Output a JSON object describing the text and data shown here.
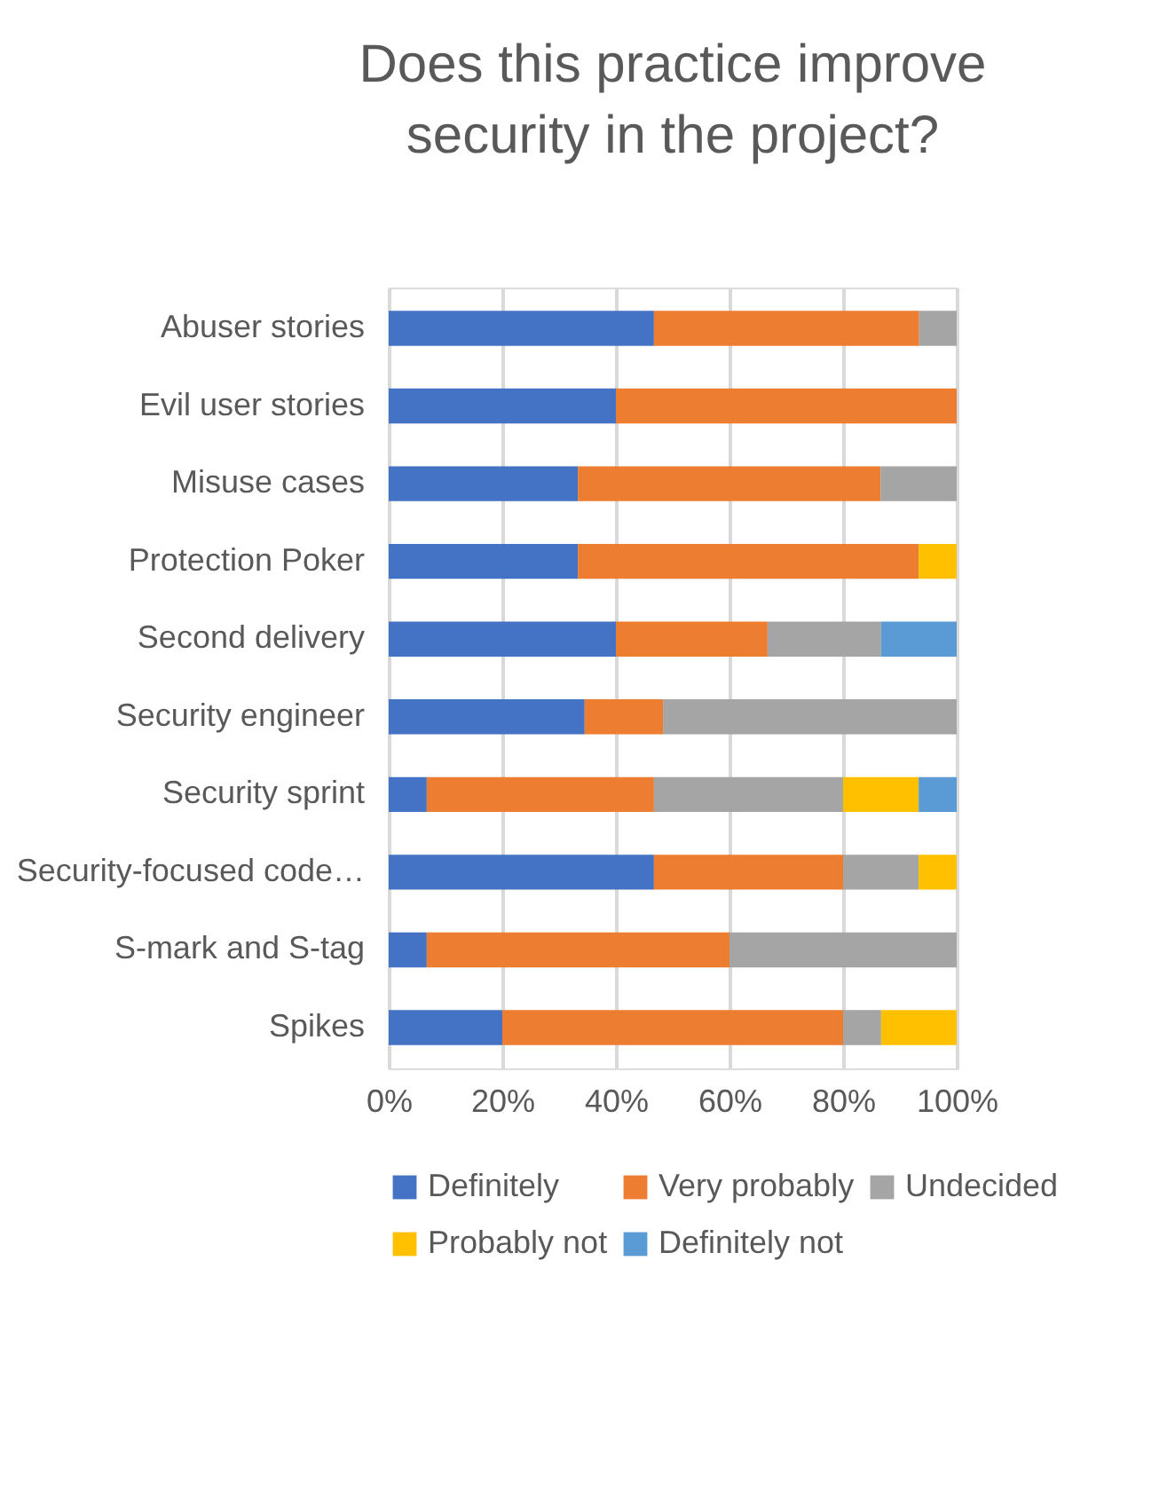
{
  "chart_data": {
    "type": "bar",
    "orientation": "horizontal",
    "stacked": true,
    "title": "Does this practice improve security in the project?",
    "categories": [
      "Abuser stories",
      "Evil user stories",
      "Misuse cases",
      "Protection Poker",
      "Second delivery",
      "Security engineer",
      "Security sprint",
      "Security-focused code…",
      "S-mark and S-tag",
      "Spikes"
    ],
    "series": [
      {
        "name": "Definitely",
        "color": "#4472c4",
        "values": [
          46.7,
          40,
          33.3,
          33.3,
          40,
          34.5,
          6.7,
          46.7,
          6.7,
          20
        ]
      },
      {
        "name": "Very probably",
        "color": "#ed7d31",
        "values": [
          46.7,
          60,
          53.3,
          60,
          26.7,
          13.8,
          40,
          33.3,
          53.3,
          60
        ]
      },
      {
        "name": "Undecided",
        "color": "#a5a5a5",
        "values": [
          6.6,
          0,
          13.4,
          0,
          20,
          51.7,
          33.3,
          13.3,
          40,
          6.7
        ]
      },
      {
        "name": "Probably not",
        "color": "#ffc000",
        "values": [
          0,
          0,
          0,
          6.7,
          0,
          0,
          13.3,
          6.7,
          0,
          13.3
        ]
      },
      {
        "name": "Definitely not",
        "color": "#5b9bd5",
        "values": [
          0,
          0,
          0,
          0,
          13.3,
          0,
          6.7,
          0,
          0,
          0
        ]
      }
    ],
    "xlim": [
      0,
      100
    ],
    "xticks": [
      {
        "value": 0,
        "label": "0%"
      },
      {
        "value": 20,
        "label": "20%"
      },
      {
        "value": 40,
        "label": "40%"
      },
      {
        "value": 60,
        "label": "60%"
      },
      {
        "value": 80,
        "label": "80%"
      },
      {
        "value": 100,
        "label": "100%"
      }
    ],
    "grid": "x",
    "legend": "bottom"
  }
}
